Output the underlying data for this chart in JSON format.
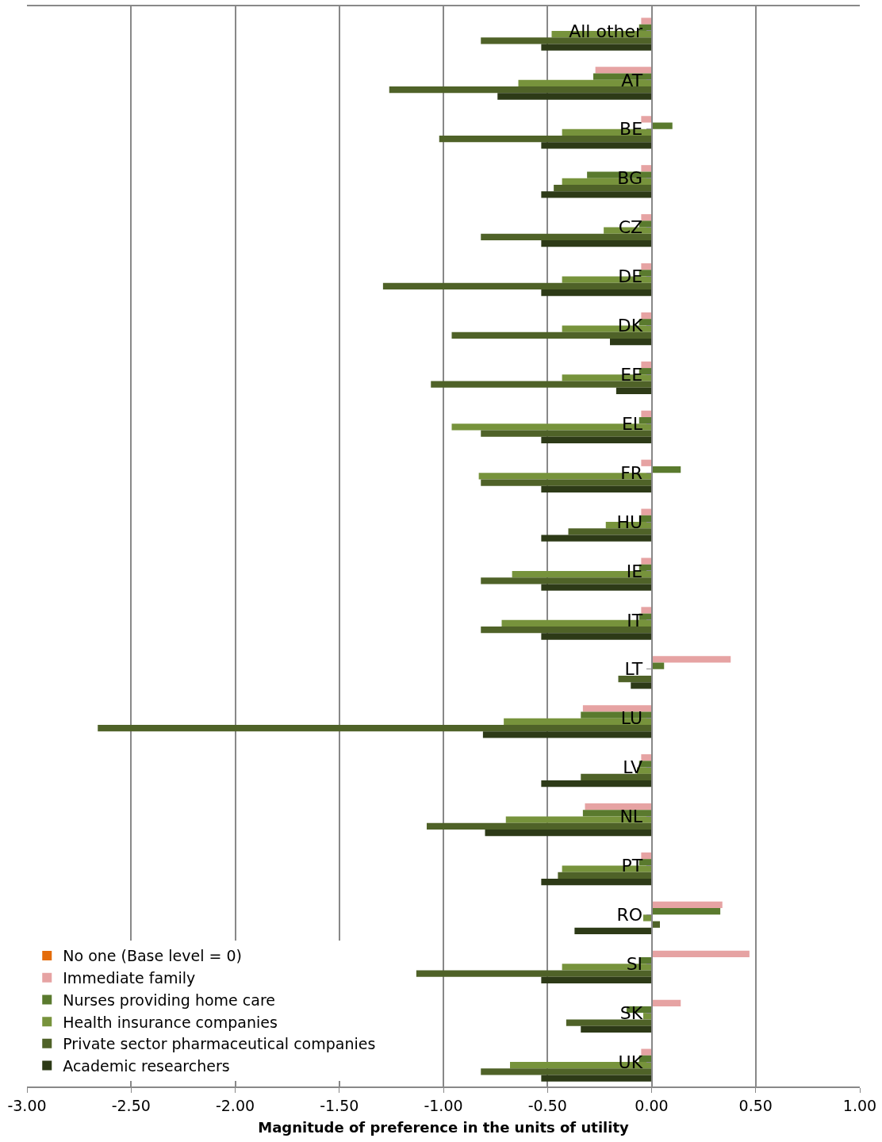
{
  "chart_data": {
    "type": "bar",
    "orientation": "horizontal",
    "xlabel": "Magnitude of preference in the units of utility",
    "categories": [
      "All other",
      "AT",
      "BE",
      "BG",
      "CZ",
      "DE",
      "DK",
      "EE",
      "EL",
      "FR",
      "HU",
      "IE",
      "IT",
      "LT",
      "LU",
      "LV",
      "NL",
      "PT",
      "RO",
      "SI",
      "SK",
      "UK"
    ],
    "series": [
      {
        "name": "No one (Base level = 0)",
        "color": "#e46c0a",
        "values": [
          0,
          0,
          0,
          0,
          0,
          0,
          0,
          0,
          0,
          0,
          0,
          0,
          0,
          0,
          0,
          0,
          0,
          0,
          0,
          0,
          0,
          0
        ]
      },
      {
        "name": "Immediate family",
        "color": "#e6a3a3",
        "values": [
          -0.05,
          -0.27,
          -0.05,
          -0.05,
          -0.05,
          -0.05,
          -0.05,
          -0.05,
          -0.05,
          -0.05,
          -0.05,
          -0.05,
          -0.05,
          0.38,
          -0.33,
          -0.05,
          -0.32,
          -0.05,
          0.34,
          0.47,
          0.14,
          -0.05
        ]
      },
      {
        "name": "Nurses providing home care",
        "color": "#5a7a2e",
        "values": [
          -0.06,
          -0.28,
          0.1,
          -0.31,
          -0.06,
          -0.06,
          -0.06,
          -0.06,
          -0.06,
          0.14,
          -0.06,
          -0.06,
          -0.06,
          0.06,
          -0.34,
          -0.06,
          -0.33,
          -0.06,
          0.33,
          -0.06,
          -0.12,
          -0.06
        ]
      },
      {
        "name": "Health insurance companies",
        "color": "#77933c",
        "values": [
          -0.48,
          -0.64,
          -0.43,
          -0.43,
          -0.23,
          -0.43,
          -0.43,
          -0.43,
          -0.96,
          -0.83,
          -0.22,
          -0.67,
          -0.72,
          null,
          -0.71,
          -0.07,
          -0.7,
          -0.43,
          -0.04,
          -0.43,
          -0.04,
          -0.68
        ]
      },
      {
        "name": "Private sector pharmaceutical companies",
        "color": "#4f6228",
        "values": [
          -0.82,
          -1.26,
          -1.02,
          -0.47,
          -0.82,
          -1.29,
          -0.96,
          -1.06,
          -0.82,
          -0.82,
          -0.4,
          -0.82,
          -0.82,
          -0.16,
          -2.66,
          -0.34,
          -1.08,
          -0.45,
          0.04,
          -1.13,
          -0.41,
          -0.82
        ]
      },
      {
        "name": "Academic researchers",
        "color": "#2d3a17",
        "values": [
          -0.53,
          -0.74,
          -0.53,
          -0.53,
          -0.53,
          -0.53,
          -0.2,
          -0.17,
          -0.53,
          -0.53,
          -0.53,
          -0.53,
          -0.53,
          -0.1,
          -0.81,
          -0.53,
          -0.8,
          -0.53,
          -0.37,
          -0.53,
          -0.34,
          -0.53
        ]
      }
    ],
    "xlim": [
      -3,
      1
    ],
    "xticks": [
      {
        "value": -3,
        "label": "-3.00"
      },
      {
        "value": -2.5,
        "label": "-2.50"
      },
      {
        "value": -2,
        "label": "-2.00"
      },
      {
        "value": -1.5,
        "label": "-1.50"
      },
      {
        "value": -1,
        "label": "-1.00"
      },
      {
        "value": -0.5,
        "label": "-0.50"
      },
      {
        "value": 0,
        "label": "0.00"
      },
      {
        "value": 0.5,
        "label": "0.50"
      },
      {
        "value": 1,
        "label": "1.00"
      }
    ],
    "grid": "x",
    "legend": "bottom left"
  }
}
